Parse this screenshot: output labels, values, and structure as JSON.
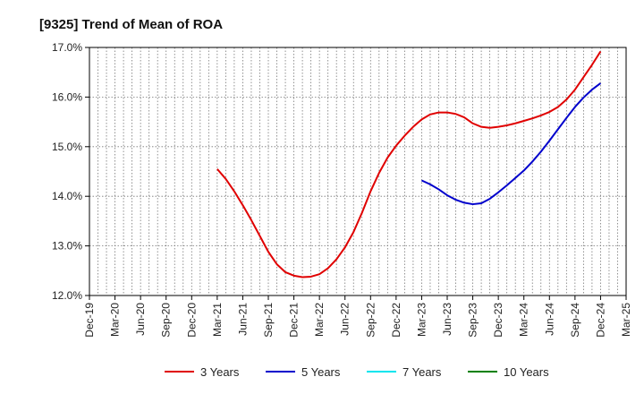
{
  "chart_data": {
    "type": "line",
    "title": "[9325]  Trend of Mean of ROA",
    "xlabel": "",
    "ylabel": "",
    "categories": [
      "Dec-19",
      "Mar-20",
      "Jun-20",
      "Sep-20",
      "Dec-20",
      "Mar-21",
      "Jun-21",
      "Sep-21",
      "Dec-21",
      "Mar-22",
      "Jun-22",
      "Sep-22",
      "Dec-22",
      "Mar-23",
      "Jun-23",
      "Sep-23",
      "Dec-23",
      "Mar-24",
      "Jun-24",
      "Sep-24",
      "Dec-24",
      "Mar-25"
    ],
    "ylim": [
      12.0,
      17.0
    ],
    "yticks": [
      12.0,
      13.0,
      14.0,
      15.0,
      16.0,
      17.0
    ],
    "ytick_labels": [
      "12.0%",
      "13.0%",
      "14.0%",
      "15.0%",
      "16.0%",
      "17.0%"
    ],
    "grid": true,
    "legend_position": "bottom",
    "series": [
      {
        "name": "3 Years",
        "color": "#e00000",
        "points": [
          [
            "Mar-21",
            14.55
          ],
          [
            "Apr-21",
            14.35
          ],
          [
            "May-21",
            14.1
          ],
          [
            "Jun-21",
            13.82
          ],
          [
            "Jul-21",
            13.52
          ],
          [
            "Aug-21",
            13.2
          ],
          [
            "Sep-21",
            12.88
          ],
          [
            "Oct-21",
            12.63
          ],
          [
            "Nov-21",
            12.47
          ],
          [
            "Dec-21",
            12.4
          ],
          [
            "Jan-22",
            12.37
          ],
          [
            "Feb-22",
            12.38
          ],
          [
            "Mar-22",
            12.43
          ],
          [
            "Apr-22",
            12.55
          ],
          [
            "May-22",
            12.73
          ],
          [
            "Jun-22",
            12.97
          ],
          [
            "Jul-22",
            13.28
          ],
          [
            "Aug-22",
            13.67
          ],
          [
            "Sep-22",
            14.1
          ],
          [
            "Oct-22",
            14.47
          ],
          [
            "Nov-22",
            14.78
          ],
          [
            "Dec-22",
            15.02
          ],
          [
            "Jan-23",
            15.22
          ],
          [
            "Feb-23",
            15.4
          ],
          [
            "Mar-23",
            15.55
          ],
          [
            "Apr-23",
            15.65
          ],
          [
            "May-23",
            15.69
          ],
          [
            "Jun-23",
            15.69
          ],
          [
            "Jul-23",
            15.66
          ],
          [
            "Aug-23",
            15.59
          ],
          [
            "Sep-23",
            15.47
          ],
          [
            "Oct-23",
            15.4
          ],
          [
            "Nov-23",
            15.38
          ],
          [
            "Dec-23",
            15.4
          ],
          [
            "Jan-24",
            15.43
          ],
          [
            "Feb-24",
            15.47
          ],
          [
            "Mar-24",
            15.52
          ],
          [
            "Apr-24",
            15.57
          ],
          [
            "May-24",
            15.63
          ],
          [
            "Jun-24",
            15.7
          ],
          [
            "Jul-24",
            15.8
          ],
          [
            "Aug-24",
            15.95
          ],
          [
            "Sep-24",
            16.15
          ],
          [
            "Oct-24",
            16.4
          ],
          [
            "Nov-24",
            16.65
          ],
          [
            "Dec-24",
            16.92
          ]
        ]
      },
      {
        "name": "5 Years",
        "color": "#0000cc",
        "points": [
          [
            "Mar-23",
            14.32
          ],
          [
            "Apr-23",
            14.24
          ],
          [
            "May-23",
            14.14
          ],
          [
            "Jun-23",
            14.02
          ],
          [
            "Jul-23",
            13.93
          ],
          [
            "Aug-23",
            13.87
          ],
          [
            "Sep-23",
            13.84
          ],
          [
            "Oct-23",
            13.86
          ],
          [
            "Nov-23",
            13.95
          ],
          [
            "Dec-23",
            14.08
          ],
          [
            "Jan-24",
            14.22
          ],
          [
            "Feb-24",
            14.37
          ],
          [
            "Mar-24",
            14.52
          ],
          [
            "Apr-24",
            14.7
          ],
          [
            "May-24",
            14.9
          ],
          [
            "Jun-24",
            15.12
          ],
          [
            "Jul-24",
            15.35
          ],
          [
            "Aug-24",
            15.58
          ],
          [
            "Sep-24",
            15.8
          ],
          [
            "Oct-24",
            15.99
          ],
          [
            "Nov-24",
            16.15
          ],
          [
            "Dec-24",
            16.28
          ]
        ]
      },
      {
        "name": "7 Years",
        "color": "#00e5ee",
        "points": []
      },
      {
        "name": "10 Years",
        "color": "#008000",
        "points": []
      }
    ]
  }
}
